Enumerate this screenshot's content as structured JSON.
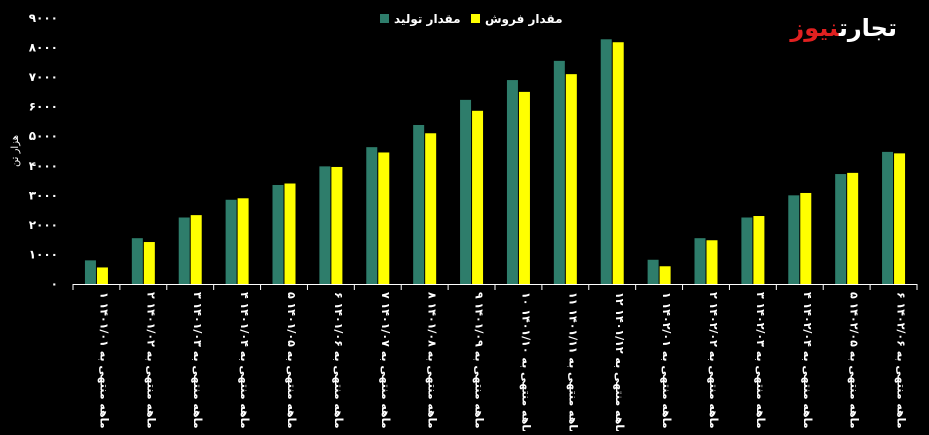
{
  "brand": {
    "logo_text_prefix": "تجارت",
    "logo_text_accent": "نیوز"
  },
  "chart_data": {
    "type": "bar",
    "title": "",
    "ylabel": "هزار تن",
    "xlabel": "",
    "ylim": [
      0,
      9000
    ],
    "yticks": [
      "۰",
      "۱۰۰۰",
      "۲۰۰۰",
      "۳۰۰۰",
      "۴۰۰۰",
      "۵۰۰۰",
      "۶۰۰۰",
      "۷۰۰۰",
      "۸۰۰۰",
      "۹۰۰۰"
    ],
    "legend_position": "top-center",
    "grid": false,
    "categories": [
      "۱ ماهه منتهی به ۱۴۰۱/۰۱",
      "۲ ماهه منتهی به ۱۴۰۱/۰۲",
      "۳ ماهه منتهی به ۱۴۰۱/۰۳",
      "۴ ماهه منتهی به ۱۴۰۱/۰۴",
      "۵ ماهه منتهی به ۱۴۰۱/۰۵",
      "۶ ماهه منتهی به ۱۴۰۱/۰۶",
      "۷ ماهه منتهی به ۱۴۰۱/۰۷",
      "۸ ماهه منتهی به ۱۴۰۱/۰۸",
      "۹ ماهه منتهی به ۱۴۰۱/۰۹",
      "۱۰ ماهه منتهی به ۱۴۰۱/۱۰",
      "۱۱ ماهه منتهی به ۱۴۰۱/۱۱",
      "۱۲ ماهه منتهی به ۱۴۰۱/۱۲",
      "۱ ماهه منتهی به ۱۴۰۲/۰۱",
      "۲ ماهه منتهی به ۱۴۰۲/۰۲",
      "۳ ماهه منتهی به ۱۴۰۲/۰۳",
      "۴ ماهه منتهی به ۱۴۰۲/۰۴",
      "۵ ماهه منتهی به ۱۴۰۲/۰۵",
      "۶ ماهه منتهی به ۱۴۰۲/۰۶"
    ],
    "series": [
      {
        "name": "مقدار تولید",
        "color": "#2e7d6b",
        "values": [
          800,
          1550,
          2250,
          2850,
          3350,
          3980,
          4630,
          5380,
          6230,
          6900,
          7550,
          8280,
          820,
          1550,
          2250,
          3000,
          3720,
          4470
        ]
      },
      {
        "name": "مقدار فروش",
        "color": "#ffff00",
        "values": [
          560,
          1420,
          2330,
          2900,
          3400,
          3960,
          4450,
          5100,
          5860,
          6500,
          7100,
          8180,
          600,
          1480,
          2300,
          3080,
          3760,
          4420
        ]
      }
    ]
  }
}
